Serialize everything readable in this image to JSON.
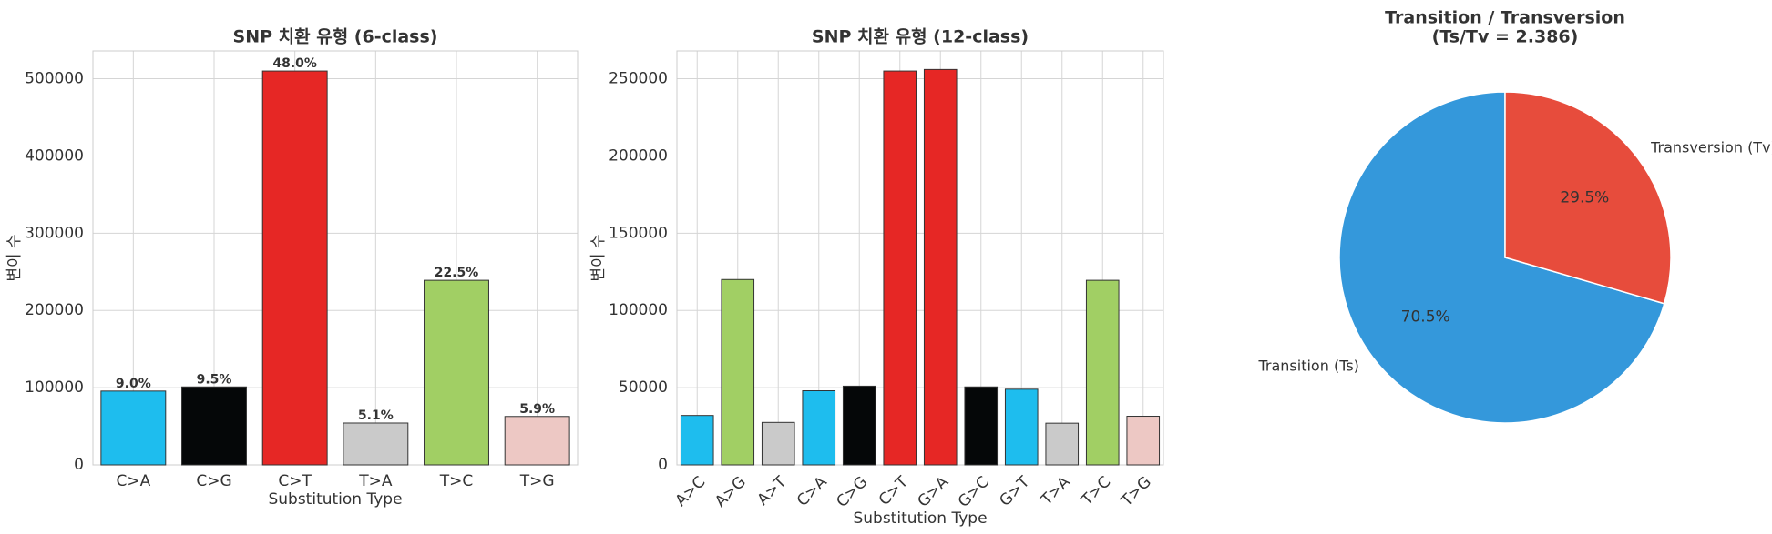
{
  "chart_data": [
    {
      "type": "bar",
      "title": "SNP 치환 유형 (6-class)",
      "xlabel": "Substitution Type",
      "ylabel": "변이 수",
      "categories": [
        "C>A",
        "C>G",
        "C>T",
        "T>A",
        "T>C",
        "T>G"
      ],
      "values": [
        95600,
        101000,
        510000,
        54200,
        239000,
        62700
      ],
      "percent_labels": [
        "9.0%",
        "9.5%",
        "48.0%",
        "5.1%",
        "22.5%",
        "5.9%"
      ],
      "colors": [
        "#1ebdee",
        "#050708",
        "#e62725",
        "#cacaca",
        "#a1cf64",
        "#edc8c4"
      ],
      "ylim": [
        0,
        536000
      ],
      "yticks": [
        0,
        100000,
        200000,
        300000,
        400000,
        500000
      ],
      "grid": true
    },
    {
      "type": "bar",
      "title": "SNP 치환 유형 (12-class)",
      "xlabel": "Substitution Type",
      "ylabel": "변이 수",
      "categories": [
        "A>C",
        "A>G",
        "A>T",
        "C>A",
        "C>G",
        "C>T",
        "G>A",
        "G>C",
        "G>T",
        "T>A",
        "T>C",
        "T>G"
      ],
      "values": [
        32000,
        120000,
        27500,
        48000,
        51000,
        255000,
        256000,
        50500,
        49000,
        27000,
        119500,
        31500
      ],
      "colors": [
        "#1ebdee",
        "#a1cf64",
        "#cacaca",
        "#1ebdee",
        "#050708",
        "#e62725",
        "#e62725",
        "#050708",
        "#1ebdee",
        "#cacaca",
        "#a1cf64",
        "#edc8c4"
      ],
      "ylim": [
        0,
        268000
      ],
      "yticks": [
        0,
        50000,
        100000,
        150000,
        200000,
        250000
      ],
      "grid": true,
      "rotate_labels": true
    },
    {
      "type": "pie",
      "title": "Transition / Transversion",
      "subtitle": "(Ts/Tv = 2.386)",
      "categories": [
        "Transition (Ts)",
        "Transversion (Tv)"
      ],
      "values": [
        70.5,
        29.5
      ],
      "value_labels": [
        "70.5%",
        "29.5%"
      ],
      "colors": [
        "#3498db",
        "#e74c3c"
      ]
    }
  ]
}
